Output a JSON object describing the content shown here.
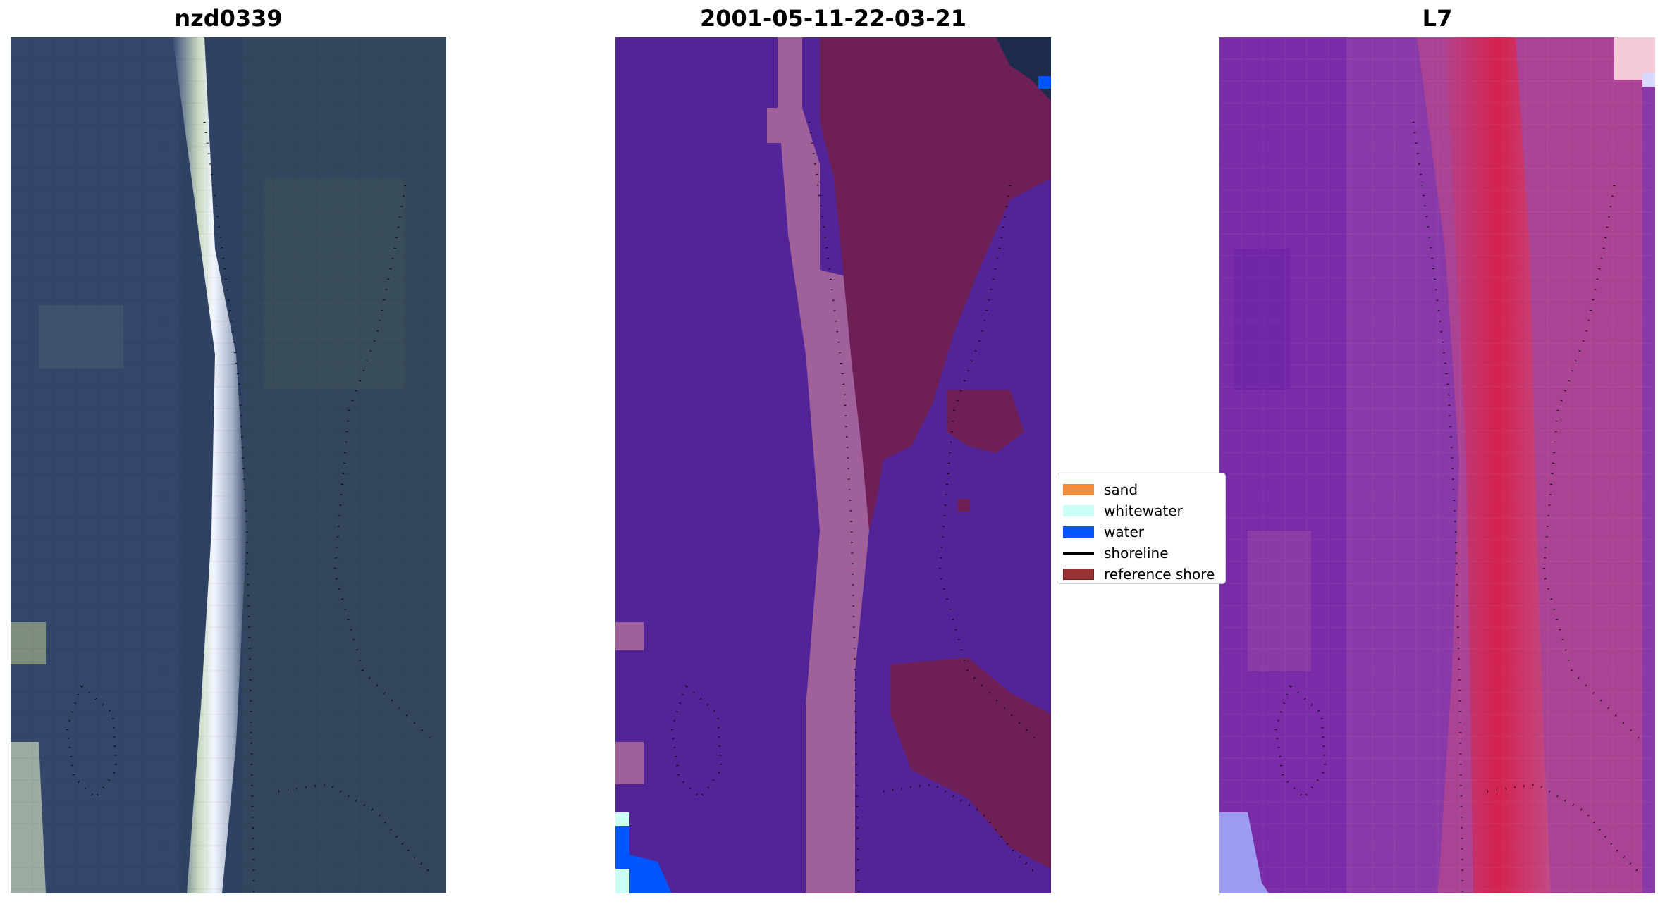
{
  "panels": {
    "left": {
      "title": "nzd0339"
    },
    "middle": {
      "title": "2001-05-11-22-03-21"
    },
    "right": {
      "title": "L7"
    }
  },
  "legend": {
    "items": [
      {
        "label": "sand",
        "color": "#f28c3c",
        "kind": "patch"
      },
      {
        "label": "whitewater",
        "color": "#ccfff5",
        "kind": "patch"
      },
      {
        "label": "water",
        "color": "#0055ff",
        "kind": "patch"
      },
      {
        "label": "shoreline",
        "color": "#000000",
        "kind": "line"
      },
      {
        "label": "reference shore",
        "color": "#993333",
        "kind": "patch"
      }
    ]
  },
  "colors": {
    "rgb_water": "#2c3d5c",
    "rgb_beach": "#e8f0d8",
    "class_background": "#522497",
    "class_sand_overlay": "#a0609a",
    "class_reference": "#6e1f55",
    "class_water": "#0055ff",
    "class_whitewater": "#ccfff5",
    "index_low": "#7a2ca8",
    "index_high": "#d9305e"
  }
}
